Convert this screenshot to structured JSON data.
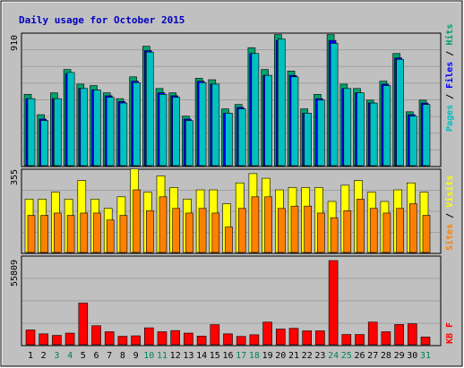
{
  "chart_data": [
    {
      "type": "bar",
      "title": "Daily usage for October 2015",
      "categories": [
        "1",
        "2",
        "3",
        "4",
        "5",
        "6",
        "7",
        "8",
        "9",
        "10",
        "11",
        "12",
        "13",
        "14",
        "15",
        "16",
        "17",
        "18",
        "19",
        "20",
        "21",
        "22",
        "23",
        "24",
        "25",
        "26",
        "27",
        "28",
        "29",
        "30",
        "31"
      ],
      "weekend_days": [
        "3",
        "4",
        "10",
        "11",
        "17",
        "18",
        "24",
        "25",
        "31"
      ],
      "ymax_label": "910",
      "ylim": [
        0,
        910
      ],
      "legend": [
        {
          "name": "Pages",
          "color": "#00c0c0"
        },
        {
          "name": "Files",
          "color": "#0000ff"
        },
        {
          "name": "Hits",
          "color": "#00a070"
        }
      ],
      "series": [
        {
          "name": "Hits",
          "values": [
            490,
            350,
            500,
            660,
            560,
            550,
            500,
            460,
            610,
            820,
            530,
            500,
            340,
            600,
            590,
            390,
            420,
            810,
            660,
            900,
            650,
            390,
            490,
            900,
            560,
            530,
            450,
            580,
            770,
            370,
            450
          ]
        },
        {
          "name": "Files",
          "values": [
            460,
            320,
            460,
            630,
            530,
            520,
            480,
            440,
            580,
            790,
            500,
            480,
            320,
            580,
            560,
            360,
            400,
            770,
            620,
            860,
            620,
            360,
            460,
            860,
            530,
            500,
            430,
            560,
            740,
            350,
            430
          ]
        },
        {
          "name": "Pages",
          "values": [
            460,
            310,
            460,
            640,
            530,
            520,
            470,
            430,
            570,
            780,
            490,
            470,
            310,
            570,
            560,
            360,
            390,
            770,
            620,
            870,
            610,
            360,
            450,
            840,
            530,
            500,
            430,
            550,
            730,
            340,
            420
          ]
        }
      ]
    },
    {
      "type": "bar",
      "categories": [
        "1",
        "2",
        "3",
        "4",
        "5",
        "6",
        "7",
        "8",
        "9",
        "10",
        "11",
        "12",
        "13",
        "14",
        "15",
        "16",
        "17",
        "18",
        "19",
        "20",
        "21",
        "22",
        "23",
        "24",
        "25",
        "26",
        "27",
        "28",
        "29",
        "30",
        "31"
      ],
      "ymax_label": "355",
      "ylim": [
        0,
        355
      ],
      "legend": [
        {
          "name": "Sites",
          "color": "#ff8000"
        },
        {
          "name": "Visits",
          "color": "#ffff00"
        }
      ],
      "series": [
        {
          "name": "Visits",
          "values": [
            230,
            230,
            260,
            230,
            310,
            230,
            190,
            240,
            360,
            260,
            330,
            280,
            230,
            270,
            270,
            210,
            300,
            340,
            320,
            270,
            280,
            280,
            280,
            220,
            290,
            310,
            260,
            220,
            270,
            300,
            260
          ]
        },
        {
          "name": "Sites",
          "values": [
            160,
            160,
            170,
            160,
            170,
            170,
            140,
            160,
            270,
            180,
            240,
            190,
            170,
            190,
            170,
            110,
            190,
            240,
            240,
            190,
            200,
            200,
            170,
            150,
            180,
            230,
            190,
            170,
            190,
            210,
            160
          ]
        }
      ]
    },
    {
      "type": "bar",
      "categories": [
        "1",
        "2",
        "3",
        "4",
        "5",
        "6",
        "7",
        "8",
        "9",
        "10",
        "11",
        "12",
        "13",
        "14",
        "15",
        "16",
        "17",
        "18",
        "19",
        "20",
        "21",
        "22",
        "23",
        "24",
        "25",
        "26",
        "27",
        "28",
        "29",
        "30",
        "31"
      ],
      "ymax_label": "55809",
      "ylim": [
        0,
        55809
      ],
      "legend": [
        {
          "name": "KB F",
          "color": "#ff0000"
        }
      ],
      "series": [
        {
          "name": "KB F",
          "values": [
            9800,
            7200,
            6200,
            7700,
            27600,
            12600,
            8600,
            5600,
            5900,
            11200,
            8600,
            9400,
            7700,
            5700,
            13300,
            7200,
            5500,
            6600,
            15000,
            10400,
            10900,
            9200,
            9200,
            55809,
            6800,
            6800,
            15000,
            8600,
            13400,
            13900,
            5100
          ]
        }
      ]
    }
  ]
}
